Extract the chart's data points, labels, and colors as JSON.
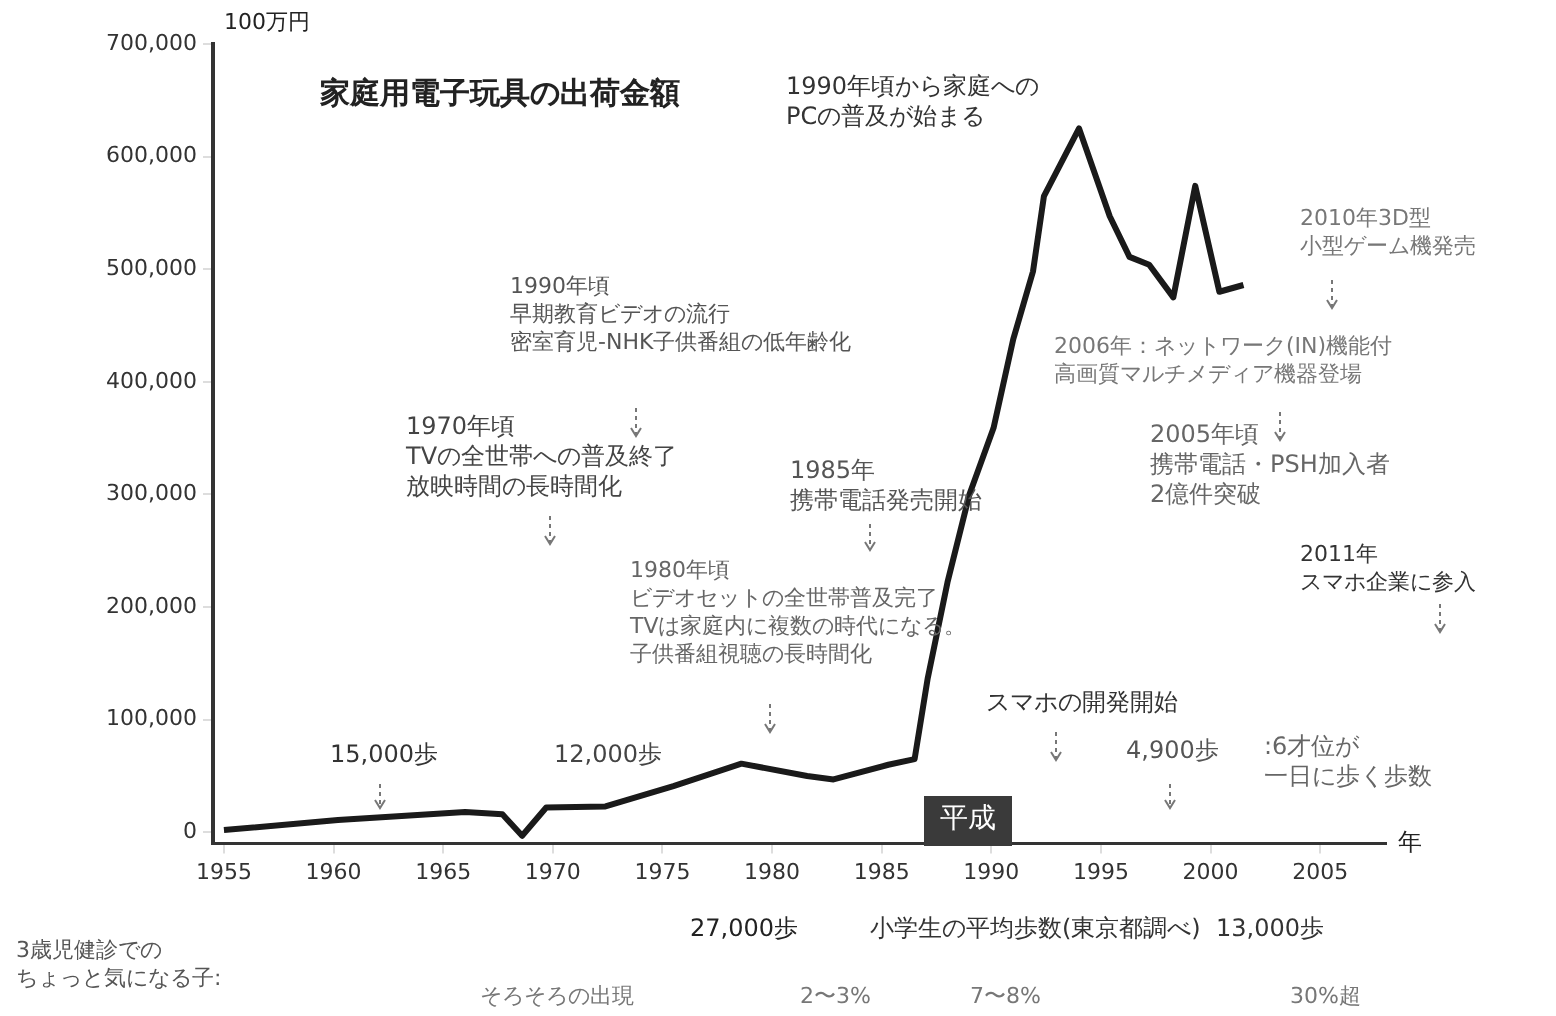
{
  "chart_data": {
    "type": "line",
    "title": "家庭用電子玩具の出荷金額",
    "ylabel": "100万円",
    "xlabel": "年",
    "x": [
      1955,
      1960.2,
      1966,
      1967.7,
      1968.6,
      1969.7,
      1972.4,
      1975.5,
      1978.6,
      1981.6,
      1982.8,
      1985.3,
      1986.5,
      1987.1,
      1988,
      1989,
      1990.1,
      1991,
      1991.9,
      1992.4,
      1994,
      1995.4,
      1996.3,
      1997.2,
      1998.3,
      1999.3,
      2000.4,
      2001.5
    ],
    "series": [
      {
        "color": "#1a1a1a",
        "values": [
          2000,
          11000,
          18000,
          16000,
          -3000,
          22000,
          23000,
          41000,
          61000,
          50000,
          47000,
          60000,
          65000,
          137000,
          222000,
          300000,
          359000,
          438000,
          498000,
          565000,
          625000,
          547000,
          511000,
          504000,
          475000,
          574000,
          480000,
          486000
        ]
      }
    ],
    "xlim": [
      1954.5,
      2008
    ],
    "xticks": [
      1955,
      1960,
      1965,
      1970,
      1975,
      1980,
      1985,
      1990,
      1995,
      2000,
      2005
    ],
    "ylim": [
      -10000,
      700000
    ],
    "yticks": [
      {
        "value": 0,
        "label": "0"
      },
      {
        "value": 100000,
        "label": "100,000"
      },
      {
        "value": 200000,
        "label": "200,000"
      },
      {
        "value": 300000,
        "label": "300,000"
      },
      {
        "value": 400000,
        "label": "400,000"
      },
      {
        "value": 500000,
        "label": "500,000"
      },
      {
        "value": 600000,
        "label": "600,000"
      },
      {
        "value": 700000,
        "label": "700,000"
      }
    ],
    "grid": false,
    "legend": false,
    "marker": "none",
    "line_style": "solid",
    "annotations": [
      "1990年頃から家庭へのPCの普及が始まる",
      "2010年3D型小型ゲーム機発売",
      "1990年頃早期教育ビデオの流行密室育児-NHK子供番組の低年齢化",
      "2006年：ネットワーク(IN)機能付高画質マルチメディア機器登場",
      "1970年頃TVの全世帯への普及終了放映時間の長時間化",
      "1985年携帯電話発売開始",
      "2005年頃携帯電話・PSH加入者2億件突破",
      "2011年スマホ企業に参入",
      "1980年頃ビデオセットの全世帯普及完了TVは家庭内に複数の時代になる。子供番組視聴の長時間化",
      "15,000歩",
      "12,000歩",
      "スマホの開発開始",
      "4,900歩",
      ":6才位が一日に歩く歩数",
      "平成",
      "27,000歩",
      "小学生の平均歩数(東京都調べ)",
      "13,000歩",
      "3歳児健診でのちょっと気になる子:",
      "そろそろの出現",
      "2〜3%",
      "7〜8%",
      "30%超"
    ]
  }
}
